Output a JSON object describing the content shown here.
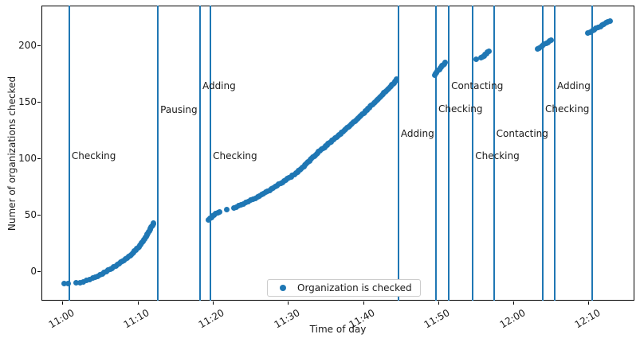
{
  "figure": {
    "background_color": "#ffffff",
    "accent_color": "#1f77b4",
    "spine_color": "#000000"
  },
  "chart_data": {
    "type": "scatter",
    "title": "",
    "xlabel": "Time of day",
    "ylabel": "Numer of organizations checked",
    "x_unit": "minutes after 11:00",
    "x_axis": {
      "range_minutes": [
        -2.8,
        76.1
      ],
      "tick_rotation_deg": 30,
      "ticks": [
        {
          "t": 0,
          "label": "11:00"
        },
        {
          "t": 10,
          "label": "11:10"
        },
        {
          "t": 20,
          "label": "11:20"
        },
        {
          "t": 30,
          "label": "11:30"
        },
        {
          "t": 40,
          "label": "11:40"
        },
        {
          "t": 50,
          "label": "11:50"
        },
        {
          "t": 60,
          "label": "12:00"
        },
        {
          "t": 70,
          "label": "12:10"
        }
      ]
    },
    "y_axis": {
      "range": [
        -25.8,
        235.4
      ],
      "ticks": [
        0,
        50,
        100,
        150,
        200
      ]
    },
    "legend": {
      "label": "Organization is checked",
      "marker": "dot",
      "marker_color": "#1f77b4",
      "position": "lower center"
    },
    "vlines": [
      {
        "t": 0.9,
        "label": "Checking",
        "label_v": 102
      },
      {
        "t": 12.7,
        "label": "Pausing",
        "label_v": 143
      },
      {
        "t": 18.3,
        "label": "Adding",
        "label_v": 164
      },
      {
        "t": 19.7,
        "label": "Checking",
        "label_v": 102
      },
      {
        "t": 44.7,
        "label": "Adding",
        "label_v": 122
      },
      {
        "t": 49.7,
        "label": "Checking",
        "label_v": 144
      },
      {
        "t": 51.4,
        "label": "Contacting",
        "label_v": 164
      },
      {
        "t": 54.6,
        "label": "Checking",
        "label_v": 102
      },
      {
        "t": 57.4,
        "label": "Contacting",
        "label_v": 122
      },
      {
        "t": 63.9,
        "label": "Checking",
        "label_v": 144
      },
      {
        "t": 65.5,
        "label": "Adding",
        "label_v": 164
      },
      {
        "t": 70.5,
        "label": "",
        "label_v": null
      }
    ],
    "series": [
      {
        "name": "Organization is checked",
        "color": "#1f77b4",
        "points_t_count": [
          [
            0.2,
            -11
          ],
          [
            0.7,
            -11
          ],
          [
            1.8,
            -10
          ],
          [
            2.3,
            -10
          ],
          [
            2.8,
            -9
          ],
          [
            3.2,
            -8
          ],
          [
            3.6,
            -7
          ],
          [
            4.0,
            -6
          ],
          [
            4.35,
            -5
          ],
          [
            4.7,
            -4
          ],
          [
            5.0,
            -3
          ],
          [
            5.3,
            -2
          ],
          [
            5.55,
            -1
          ],
          [
            5.8,
            0
          ],
          [
            6.1,
            1
          ],
          [
            6.35,
            2
          ],
          [
            6.6,
            3
          ],
          [
            6.85,
            4
          ],
          [
            7.1,
            5
          ],
          [
            7.3,
            6
          ],
          [
            7.5,
            7
          ],
          [
            7.75,
            8
          ],
          [
            8.0,
            9
          ],
          [
            8.2,
            10
          ],
          [
            8.4,
            11
          ],
          [
            8.6,
            12
          ],
          [
            8.8,
            13
          ],
          [
            9.0,
            14
          ],
          [
            9.15,
            15
          ],
          [
            9.3,
            16
          ],
          [
            9.45,
            17
          ],
          [
            9.6,
            18
          ],
          [
            9.75,
            19
          ],
          [
            9.9,
            20
          ],
          [
            10.05,
            21
          ],
          [
            10.2,
            22
          ],
          [
            10.3,
            23
          ],
          [
            10.4,
            24
          ],
          [
            10.5,
            25
          ],
          [
            10.6,
            26
          ],
          [
            10.7,
            27
          ],
          [
            10.8,
            28
          ],
          [
            10.9,
            29
          ],
          [
            11.0,
            30
          ],
          [
            11.1,
            31
          ],
          [
            11.2,
            32
          ],
          [
            11.3,
            33
          ],
          [
            11.4,
            34
          ],
          [
            11.5,
            35
          ],
          [
            11.6,
            36
          ],
          [
            11.65,
            37
          ],
          [
            11.7,
            38
          ],
          [
            11.8,
            39
          ],
          [
            11.85,
            40
          ],
          [
            11.95,
            41
          ],
          [
            12.05,
            42
          ],
          [
            12.15,
            43
          ],
          [
            19.4,
            46
          ],
          [
            19.6,
            47
          ],
          [
            19.8,
            48
          ],
          [
            20.0,
            49
          ],
          [
            20.2,
            50
          ],
          [
            20.4,
            51
          ],
          [
            20.65,
            52
          ],
          [
            20.9,
            53
          ],
          [
            21.9,
            55
          ],
          [
            22.8,
            56
          ],
          [
            23.1,
            57
          ],
          [
            23.45,
            58
          ],
          [
            23.75,
            59
          ],
          [
            24.1,
            60
          ],
          [
            24.4,
            61
          ],
          [
            24.7,
            62
          ],
          [
            25.05,
            63
          ],
          [
            25.35,
            64
          ],
          [
            25.7,
            65
          ],
          [
            26.0,
            66
          ],
          [
            26.25,
            67
          ],
          [
            26.5,
            68
          ],
          [
            26.75,
            69
          ],
          [
            27.0,
            70
          ],
          [
            27.3,
            71
          ],
          [
            27.55,
            72
          ],
          [
            27.8,
            73
          ],
          [
            28.05,
            74
          ],
          [
            28.3,
            75
          ],
          [
            28.55,
            76
          ],
          [
            28.8,
            77
          ],
          [
            29.05,
            78
          ],
          [
            29.25,
            79
          ],
          [
            29.5,
            80
          ],
          [
            29.7,
            81
          ],
          [
            29.95,
            82
          ],
          [
            30.15,
            83
          ],
          [
            30.4,
            84
          ],
          [
            30.6,
            85
          ],
          [
            30.85,
            86
          ],
          [
            31.05,
            87
          ],
          [
            31.3,
            88
          ],
          [
            31.45,
            89
          ],
          [
            31.6,
            90
          ],
          [
            31.75,
            91
          ],
          [
            31.9,
            92
          ],
          [
            32.1,
            93
          ],
          [
            32.25,
            94
          ],
          [
            32.4,
            95
          ],
          [
            32.55,
            96
          ],
          [
            32.7,
            97
          ],
          [
            32.85,
            98
          ],
          [
            33.0,
            99
          ],
          [
            33.15,
            100
          ],
          [
            33.3,
            101
          ],
          [
            33.5,
            102
          ],
          [
            33.65,
            103
          ],
          [
            33.8,
            104
          ],
          [
            33.95,
            105
          ],
          [
            34.1,
            106
          ],
          [
            34.3,
            107
          ],
          [
            34.45,
            108
          ],
          [
            34.65,
            109
          ],
          [
            34.85,
            110
          ],
          [
            35.0,
            111
          ],
          [
            35.2,
            112
          ],
          [
            35.35,
            113
          ],
          [
            35.55,
            114
          ],
          [
            35.75,
            115
          ],
          [
            35.9,
            116
          ],
          [
            36.1,
            117
          ],
          [
            36.3,
            118
          ],
          [
            36.45,
            119
          ],
          [
            36.65,
            120
          ],
          [
            36.8,
            121
          ],
          [
            37.0,
            122
          ],
          [
            37.15,
            123
          ],
          [
            37.35,
            124
          ],
          [
            37.5,
            125
          ],
          [
            37.7,
            126
          ],
          [
            37.85,
            127
          ],
          [
            38.05,
            128
          ],
          [
            38.2,
            129
          ],
          [
            38.35,
            130
          ],
          [
            38.55,
            131
          ],
          [
            38.7,
            132
          ],
          [
            38.9,
            133
          ],
          [
            39.05,
            134
          ],
          [
            39.25,
            135
          ],
          [
            39.4,
            136
          ],
          [
            39.55,
            137
          ],
          [
            39.7,
            138
          ],
          [
            39.85,
            139
          ],
          [
            40.05,
            140
          ],
          [
            40.2,
            141
          ],
          [
            40.35,
            142
          ],
          [
            40.5,
            143
          ],
          [
            40.65,
            144
          ],
          [
            40.8,
            145
          ],
          [
            40.95,
            146
          ],
          [
            41.1,
            147
          ],
          [
            41.3,
            148
          ],
          [
            41.45,
            149
          ],
          [
            41.6,
            150
          ],
          [
            41.75,
            151
          ],
          [
            41.9,
            152
          ],
          [
            42.05,
            153
          ],
          [
            42.2,
            154
          ],
          [
            42.35,
            155
          ],
          [
            42.5,
            156
          ],
          [
            42.65,
            157
          ],
          [
            42.8,
            158
          ],
          [
            42.95,
            159
          ],
          [
            43.1,
            160
          ],
          [
            43.25,
            161
          ],
          [
            43.4,
            162
          ],
          [
            43.55,
            163
          ],
          [
            43.7,
            164
          ],
          [
            43.85,
            165
          ],
          [
            44.0,
            166
          ],
          [
            44.1,
            167
          ],
          [
            44.2,
            168
          ],
          [
            44.3,
            169
          ],
          [
            44.4,
            170
          ],
          [
            49.5,
            174
          ],
          [
            49.62,
            175
          ],
          [
            49.75,
            176
          ],
          [
            49.88,
            177
          ],
          [
            50.0,
            178
          ],
          [
            50.13,
            179
          ],
          [
            50.26,
            180
          ],
          [
            50.4,
            181
          ],
          [
            50.52,
            182
          ],
          [
            50.65,
            183
          ],
          [
            50.78,
            184
          ],
          [
            50.9,
            185
          ],
          [
            55.0,
            188
          ],
          [
            55.7,
            189
          ],
          [
            55.9,
            190
          ],
          [
            56.08,
            191
          ],
          [
            56.25,
            192
          ],
          [
            56.4,
            193
          ],
          [
            56.55,
            194
          ],
          [
            56.7,
            195
          ],
          [
            63.2,
            197
          ],
          [
            63.45,
            198
          ],
          [
            63.7,
            199
          ],
          [
            63.9,
            200
          ],
          [
            64.1,
            201
          ],
          [
            64.35,
            202
          ],
          [
            64.6,
            203
          ],
          [
            64.8,
            204
          ],
          [
            65.05,
            205
          ],
          [
            69.9,
            211
          ],
          [
            70.2,
            212
          ],
          [
            70.5,
            213
          ],
          [
            70.75,
            214
          ],
          [
            71.0,
            215
          ],
          [
            71.3,
            216
          ],
          [
            71.55,
            217
          ],
          [
            71.8,
            218
          ],
          [
            72.05,
            219
          ],
          [
            72.3,
            220
          ],
          [
            72.6,
            221
          ],
          [
            72.9,
            222
          ]
        ]
      }
    ]
  }
}
